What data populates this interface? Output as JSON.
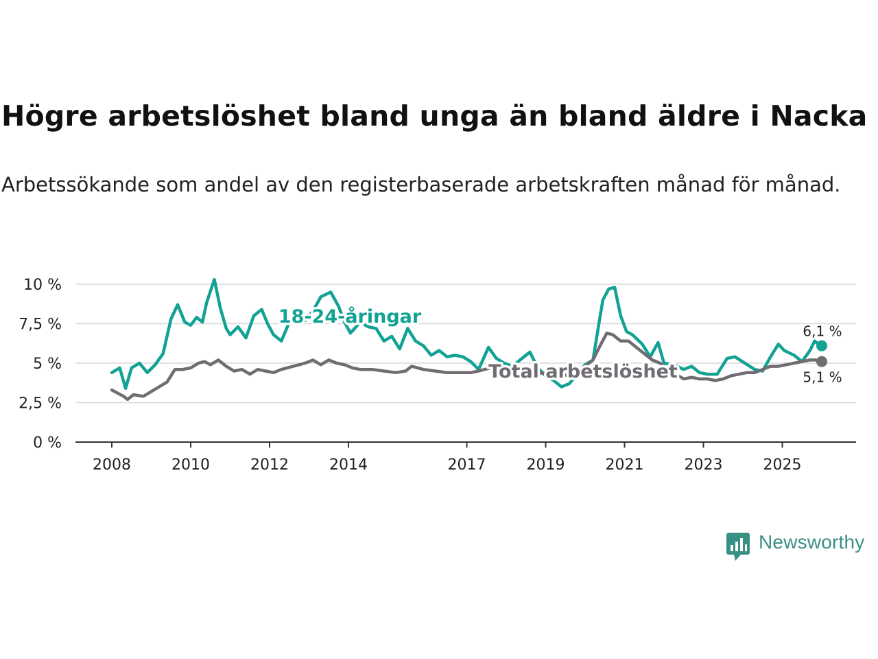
{
  "header": {
    "title": "Högre arbetslöshet bland unga än bland äldre i Nacka",
    "subtitle": "Arbetssökande som andel av den registerbaserade arbetskraften månad för månad."
  },
  "brand": {
    "name": "Newsworthy",
    "icon": "newsworthy-logo-icon"
  },
  "colors": {
    "youth": "#12a293",
    "total": "#706c72",
    "grid": "#d9d9d9",
    "axis": "#333333",
    "brand": "#3a8f84"
  },
  "chart_data": {
    "type": "line",
    "title": "Högre arbetslöshet bland unga än bland äldre i Nacka",
    "xlabel": "",
    "ylabel": "",
    "xlim": [
      2008.0,
      2026.5
    ],
    "ylim": [
      0,
      10
    ],
    "y_ticks": [
      0,
      2.5,
      5,
      7.5,
      10
    ],
    "y_tick_labels": [
      "0 %",
      "2,5 %",
      "5 %",
      "7,5 %",
      "10 %"
    ],
    "x_ticks": [
      2008,
      2010,
      2012,
      2014,
      2017,
      2019,
      2021,
      2023,
      2025
    ],
    "x_tick_labels": [
      "2008",
      "2010",
      "2012",
      "2014",
      "2017",
      "2019",
      "2021",
      "2023",
      "2025"
    ],
    "grid": true,
    "series": [
      {
        "name": "18-24-åringar",
        "label": "18-24-åringar",
        "end_label": "6,1 %",
        "last_value": 6.1,
        "points": [
          [
            2008.0,
            4.4
          ],
          [
            2008.2,
            4.7
          ],
          [
            2008.35,
            3.4
          ],
          [
            2008.5,
            4.7
          ],
          [
            2008.7,
            5.0
          ],
          [
            2008.9,
            4.4
          ],
          [
            2009.1,
            4.9
          ],
          [
            2009.3,
            5.6
          ],
          [
            2009.5,
            7.8
          ],
          [
            2009.67,
            8.7
          ],
          [
            2009.85,
            7.6
          ],
          [
            2010.0,
            7.4
          ],
          [
            2010.15,
            7.9
          ],
          [
            2010.3,
            7.6
          ],
          [
            2010.4,
            8.8
          ],
          [
            2010.6,
            10.3
          ],
          [
            2010.75,
            8.5
          ],
          [
            2010.9,
            7.2
          ],
          [
            2011.0,
            6.8
          ],
          [
            2011.2,
            7.3
          ],
          [
            2011.4,
            6.6
          ],
          [
            2011.6,
            8.0
          ],
          [
            2011.8,
            8.4
          ],
          [
            2011.95,
            7.5
          ],
          [
            2012.1,
            6.8
          ],
          [
            2012.3,
            6.4
          ],
          [
            2012.5,
            7.6
          ],
          [
            2012.7,
            7.9
          ],
          [
            2012.9,
            7.7
          ],
          [
            2013.1,
            8.3
          ],
          [
            2013.3,
            9.2
          ],
          [
            2013.55,
            9.5
          ],
          [
            2013.75,
            8.6
          ],
          [
            2013.9,
            7.6
          ],
          [
            2014.05,
            6.9
          ],
          [
            2014.3,
            7.6
          ],
          [
            2014.5,
            7.3
          ],
          [
            2014.7,
            7.2
          ],
          [
            2014.9,
            6.4
          ],
          [
            2015.1,
            6.7
          ],
          [
            2015.3,
            5.9
          ],
          [
            2015.5,
            7.2
          ],
          [
            2015.7,
            6.4
          ],
          [
            2015.9,
            6.1
          ],
          [
            2016.1,
            5.5
          ],
          [
            2016.3,
            5.8
          ],
          [
            2016.5,
            5.4
          ],
          [
            2016.7,
            5.5
          ],
          [
            2016.9,
            5.4
          ],
          [
            2017.1,
            5.1
          ],
          [
            2017.3,
            4.6
          ],
          [
            2017.55,
            6.0
          ],
          [
            2017.75,
            5.3
          ],
          [
            2017.95,
            5.0
          ],
          [
            2018.15,
            4.8
          ],
          [
            2018.4,
            5.3
          ],
          [
            2018.6,
            5.7
          ],
          [
            2018.8,
            4.7
          ],
          [
            2019.0,
            4.2
          ],
          [
            2019.2,
            3.9
          ],
          [
            2019.4,
            3.5
          ],
          [
            2019.6,
            3.7
          ],
          [
            2019.8,
            4.3
          ],
          [
            2020.0,
            4.9
          ],
          [
            2020.2,
            5.2
          ],
          [
            2020.35,
            7.5
          ],
          [
            2020.45,
            9.0
          ],
          [
            2020.6,
            9.7
          ],
          [
            2020.75,
            9.8
          ],
          [
            2020.9,
            8.0
          ],
          [
            2021.05,
            7.0
          ],
          [
            2021.2,
            6.8
          ],
          [
            2021.45,
            6.2
          ],
          [
            2021.65,
            5.4
          ],
          [
            2021.85,
            6.3
          ],
          [
            2022.0,
            5.0
          ],
          [
            2022.25,
            4.9
          ],
          [
            2022.5,
            4.6
          ],
          [
            2022.7,
            4.8
          ],
          [
            2022.9,
            4.4
          ],
          [
            2023.1,
            4.3
          ],
          [
            2023.35,
            4.3
          ],
          [
            2023.6,
            5.3
          ],
          [
            2023.8,
            5.4
          ],
          [
            2024.05,
            5.0
          ],
          [
            2024.3,
            4.6
          ],
          [
            2024.5,
            4.5
          ],
          [
            2024.7,
            5.4
          ],
          [
            2024.9,
            6.2
          ],
          [
            2025.05,
            5.8
          ],
          [
            2025.3,
            5.5
          ],
          [
            2025.5,
            5.1
          ],
          [
            2025.7,
            5.8
          ],
          [
            2025.82,
            6.4
          ],
          [
            2025.92,
            6.2
          ],
          [
            2026.0,
            6.1
          ]
        ]
      },
      {
        "name": "Total arbetslöshet",
        "label": "Total arbetslöshet",
        "end_label": "5,1 %",
        "last_value": 5.1,
        "points": [
          [
            2008.0,
            3.3
          ],
          [
            2008.15,
            3.1
          ],
          [
            2008.3,
            2.9
          ],
          [
            2008.4,
            2.7
          ],
          [
            2008.55,
            3.0
          ],
          [
            2008.8,
            2.9
          ],
          [
            2009.0,
            3.2
          ],
          [
            2009.2,
            3.5
          ],
          [
            2009.4,
            3.8
          ],
          [
            2009.6,
            4.6
          ],
          [
            2009.8,
            4.6
          ],
          [
            2010.0,
            4.7
          ],
          [
            2010.2,
            5.0
          ],
          [
            2010.35,
            5.1
          ],
          [
            2010.5,
            4.9
          ],
          [
            2010.7,
            5.2
          ],
          [
            2010.9,
            4.8
          ],
          [
            2011.1,
            4.5
          ],
          [
            2011.3,
            4.6
          ],
          [
            2011.5,
            4.3
          ],
          [
            2011.7,
            4.6
          ],
          [
            2011.9,
            4.5
          ],
          [
            2012.1,
            4.4
          ],
          [
            2012.3,
            4.6
          ],
          [
            2012.6,
            4.8
          ],
          [
            2012.9,
            5.0
          ],
          [
            2013.1,
            5.2
          ],
          [
            2013.3,
            4.9
          ],
          [
            2013.5,
            5.2
          ],
          [
            2013.7,
            5.0
          ],
          [
            2013.9,
            4.9
          ],
          [
            2014.1,
            4.7
          ],
          [
            2014.3,
            4.6
          ],
          [
            2014.6,
            4.6
          ],
          [
            2014.9,
            4.5
          ],
          [
            2015.2,
            4.4
          ],
          [
            2015.45,
            4.5
          ],
          [
            2015.6,
            4.8
          ],
          [
            2015.9,
            4.6
          ],
          [
            2016.2,
            4.5
          ],
          [
            2016.5,
            4.4
          ],
          [
            2016.8,
            4.4
          ],
          [
            2017.1,
            4.4
          ],
          [
            2017.3,
            4.5
          ],
          [
            2017.6,
            4.7
          ],
          [
            2017.9,
            4.5
          ],
          [
            2018.2,
            4.6
          ],
          [
            2018.5,
            4.5
          ],
          [
            2018.8,
            4.4
          ],
          [
            2019.1,
            4.3
          ],
          [
            2019.4,
            4.2
          ],
          [
            2019.7,
            4.3
          ],
          [
            2020.0,
            4.8
          ],
          [
            2020.2,
            5.2
          ],
          [
            2020.4,
            6.2
          ],
          [
            2020.55,
            6.9
          ],
          [
            2020.7,
            6.8
          ],
          [
            2020.9,
            6.4
          ],
          [
            2021.1,
            6.4
          ],
          [
            2021.3,
            6.0
          ],
          [
            2021.5,
            5.6
          ],
          [
            2021.7,
            5.2
          ],
          [
            2021.9,
            5.0
          ],
          [
            2022.1,
            4.6
          ],
          [
            2022.3,
            4.3
          ],
          [
            2022.5,
            4.0
          ],
          [
            2022.7,
            4.1
          ],
          [
            2022.9,
            4.0
          ],
          [
            2023.1,
            4.0
          ],
          [
            2023.3,
            3.9
          ],
          [
            2023.5,
            4.0
          ],
          [
            2023.7,
            4.2
          ],
          [
            2023.9,
            4.3
          ],
          [
            2024.1,
            4.4
          ],
          [
            2024.3,
            4.4
          ],
          [
            2024.5,
            4.6
          ],
          [
            2024.7,
            4.8
          ],
          [
            2024.9,
            4.8
          ],
          [
            2025.1,
            4.9
          ],
          [
            2025.3,
            5.0
          ],
          [
            2025.5,
            5.1
          ],
          [
            2025.7,
            5.2
          ],
          [
            2025.85,
            5.2
          ],
          [
            2026.0,
            5.1
          ]
        ]
      }
    ]
  }
}
